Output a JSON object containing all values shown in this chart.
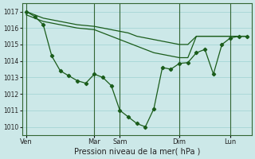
{
  "background_color": "#cce8e8",
  "grid_color": "#aad8d8",
  "line_color": "#1a5c1a",
  "xlabel": "Pression niveau de la mer( hPa )",
  "ylim": [
    1009.5,
    1017.5
  ],
  "yticks": [
    1010,
    1011,
    1012,
    1013,
    1014,
    1015,
    1016,
    1017
  ],
  "day_labels": [
    "Ven",
    "Mar",
    "Sam",
    "Dim",
    "Lun"
  ],
  "day_x": [
    0.5,
    8.5,
    11.5,
    18.5,
    24.5
  ],
  "xlim": [
    0.0,
    27.0
  ],
  "total_points": 27,
  "line1_x": [
    0.5,
    1.5,
    2.5,
    3.5,
    4.5,
    5.5,
    6.5,
    7.5,
    8.5,
    9.5,
    10.5,
    11.5,
    12.5,
    13.5,
    14.5,
    15.5,
    16.5,
    17.5,
    18.5,
    19.5,
    20.5,
    21.5,
    22.5,
    23.5,
    24.5,
    25.5,
    26.5
  ],
  "line1_y": [
    1017.0,
    1016.8,
    1016.6,
    1016.5,
    1016.4,
    1016.3,
    1016.2,
    1016.15,
    1016.1,
    1016.0,
    1015.9,
    1015.8,
    1015.7,
    1015.5,
    1015.4,
    1015.3,
    1015.2,
    1015.1,
    1015.0,
    1015.0,
    1015.5,
    1015.5,
    1015.5,
    1015.5,
    1015.5,
    1015.5,
    1015.5
  ],
  "line2_x": [
    0.5,
    1.5,
    2.5,
    3.5,
    4.5,
    5.5,
    6.5,
    7.5,
    8.5,
    9.5,
    10.5,
    11.5,
    12.5,
    13.5,
    14.5,
    15.5,
    16.5,
    17.5,
    18.5,
    19.5,
    20.5,
    21.5,
    22.5,
    23.5,
    24.5,
    25.5,
    26.5
  ],
  "line2_y": [
    1016.8,
    1016.6,
    1016.4,
    1016.3,
    1016.2,
    1016.1,
    1016.0,
    1015.95,
    1015.9,
    1015.7,
    1015.5,
    1015.3,
    1015.1,
    1014.9,
    1014.7,
    1014.5,
    1014.4,
    1014.3,
    1014.2,
    1014.2,
    1015.5,
    1015.5,
    1015.5,
    1015.5,
    1015.5,
    1015.5,
    1015.5
  ],
  "line3_x": [
    0.5,
    1.5,
    2.5,
    3.5,
    4.5,
    5.5,
    6.5,
    7.5,
    8.5,
    9.5,
    10.5,
    11.5,
    12.5,
    13.5,
    14.5,
    15.5,
    16.5,
    17.5,
    18.5,
    19.5,
    20.5,
    21.5,
    22.5,
    23.5,
    24.5,
    25.5,
    26.5
  ],
  "line3_y": [
    1017.0,
    1016.7,
    1016.2,
    1014.3,
    1013.4,
    1013.1,
    1012.8,
    1012.65,
    1013.2,
    1013.0,
    1012.5,
    1011.0,
    1010.6,
    1010.2,
    1010.0,
    1011.1,
    1013.6,
    1013.5,
    1013.85,
    1013.9,
    1014.5,
    1014.7,
    1013.2,
    1015.0,
    1015.4,
    1015.5,
    1015.5
  ]
}
